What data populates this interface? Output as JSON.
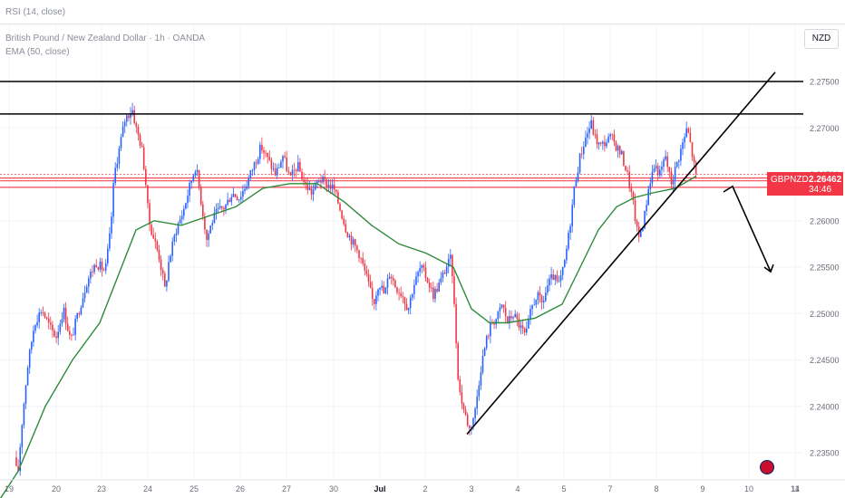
{
  "header": {
    "rsi_label": "RSI (14, close)",
    "title": "British Pound / New Zealand Dollar · 1h · OANDA",
    "ema_label": "EMA (50, close)",
    "currency_button": "NZD"
  },
  "price_badge": {
    "symbol": "GBPNZD",
    "price": "2.26462",
    "countdown": "34:46"
  },
  "colors": {
    "up_candle": "#2962ff",
    "down_candle": "#f23645",
    "ema_line": "#2e8b3a",
    "drawings": "#000000",
    "price_line": "#f23645"
  },
  "chart_data": {
    "type": "candlestick",
    "y_axis": {
      "ticks": [
        "2.27500",
        "2.27000",
        "2.26500",
        "2.26000",
        "2.25500",
        "2.25000",
        "2.24500",
        "2.24000",
        "2.23500"
      ],
      "tick_values": [
        2.275,
        2.27,
        2.265,
        2.26,
        2.255,
        2.25,
        2.245,
        2.24,
        2.235
      ],
      "ylim": [
        2.2325,
        2.279
      ]
    },
    "x_axis": {
      "ticks": [
        "19",
        "20",
        "23",
        "24",
        "25",
        "26",
        "27",
        "30",
        "Jul",
        "2",
        "3",
        "4",
        "5",
        "7",
        "8",
        "9",
        "10",
        "11",
        "14"
      ]
    },
    "price_path": [
      [
        0,
        2.2345
      ],
      [
        20,
        2.233
      ],
      [
        24,
        2.238
      ],
      [
        30,
        2.244
      ],
      [
        38,
        2.249
      ],
      [
        46,
        2.2505
      ],
      [
        55,
        2.2485
      ],
      [
        62,
        2.2475
      ],
      [
        70,
        2.2505
      ],
      [
        78,
        2.247
      ],
      [
        86,
        2.25
      ],
      [
        96,
        2.2535
      ],
      [
        106,
        2.2555
      ],
      [
        116,
        2.2545
      ],
      [
        122,
        2.259
      ],
      [
        126,
        2.265
      ],
      [
        132,
        2.268
      ],
      [
        138,
        2.271
      ],
      [
        146,
        2.272
      ],
      [
        150,
        2.27
      ],
      [
        156,
        2.268
      ],
      [
        160,
        2.265
      ],
      [
        164,
        2.26
      ],
      [
        170,
        2.258
      ],
      [
        176,
        2.256
      ],
      [
        182,
        2.2525
      ],
      [
        186,
        2.2555
      ],
      [
        194,
        2.259
      ],
      [
        202,
        2.261
      ],
      [
        210,
        2.264
      ],
      [
        216,
        2.266
      ],
      [
        222,
        2.262
      ],
      [
        228,
        2.258
      ],
      [
        234,
        2.26
      ],
      [
        240,
        2.261
      ],
      [
        248,
        2.2615
      ],
      [
        256,
        2.263
      ],
      [
        264,
        2.2625
      ],
      [
        272,
        2.264
      ],
      [
        280,
        2.266
      ],
      [
        288,
        2.268
      ],
      [
        296,
        2.2665
      ],
      [
        304,
        2.265
      ],
      [
        312,
        2.267
      ],
      [
        320,
        2.2645
      ],
      [
        328,
        2.266
      ],
      [
        336,
        2.264
      ],
      [
        344,
        2.263
      ],
      [
        352,
        2.2645
      ],
      [
        360,
        2.264
      ],
      [
        368,
        2.2635
      ],
      [
        376,
        2.261
      ],
      [
        382,
        2.259
      ],
      [
        390,
        2.2575
      ],
      [
        396,
        2.2565
      ],
      [
        404,
        2.254
      ],
      [
        412,
        2.251
      ],
      [
        418,
        2.2535
      ],
      [
        424,
        2.252
      ],
      [
        430,
        2.2545
      ],
      [
        436,
        2.253
      ],
      [
        444,
        2.252
      ],
      [
        450,
        2.2505
      ],
      [
        456,
        2.253
      ],
      [
        464,
        2.255
      ],
      [
        470,
        2.254
      ],
      [
        478,
        2.252
      ],
      [
        486,
        2.2535
      ],
      [
        492,
        2.255
      ],
      [
        498,
        2.256
      ],
      [
        502,
        2.249
      ],
      [
        506,
        2.242
      ],
      [
        512,
        2.2395
      ],
      [
        518,
        2.2375
      ],
      [
        524,
        2.2395
      ],
      [
        530,
        2.244
      ],
      [
        536,
        2.247
      ],
      [
        542,
        2.249
      ],
      [
        548,
        2.2495
      ],
      [
        554,
        2.251
      ],
      [
        560,
        2.249
      ],
      [
        566,
        2.25
      ],
      [
        574,
        2.2485
      ],
      [
        580,
        2.2475
      ],
      [
        586,
        2.2505
      ],
      [
        592,
        2.252
      ],
      [
        598,
        2.251
      ],
      [
        604,
        2.253
      ],
      [
        610,
        2.254
      ],
      [
        616,
        2.253
      ],
      [
        622,
        2.255
      ],
      [
        628,
        2.259
      ],
      [
        634,
        2.264
      ],
      [
        640,
        2.267
      ],
      [
        646,
        2.269
      ],
      [
        652,
        2.2705
      ],
      [
        656,
        2.269
      ],
      [
        662,
        2.268
      ],
      [
        668,
        2.2685
      ],
      [
        674,
        2.269
      ],
      [
        680,
        2.268
      ],
      [
        686,
        2.267
      ],
      [
        692,
        2.265
      ],
      [
        698,
        2.262
      ],
      [
        704,
        2.258
      ],
      [
        710,
        2.26
      ],
      [
        716,
        2.264
      ],
      [
        722,
        2.266
      ],
      [
        728,
        2.265
      ],
      [
        734,
        2.267
      ],
      [
        740,
        2.264
      ],
      [
        746,
        2.266
      ],
      [
        752,
        2.268
      ],
      [
        758,
        2.27
      ],
      [
        762,
        2.268
      ],
      [
        768,
        2.2646
      ]
    ],
    "series": [
      {
        "name": "EMA (50, close)",
        "points": [
          [
            0,
            2.23
          ],
          [
            20,
            2.233
          ],
          [
            50,
            2.24
          ],
          [
            80,
            2.245
          ],
          [
            110,
            2.249
          ],
          [
            130,
            2.254
          ],
          [
            150,
            2.259
          ],
          [
            170,
            2.26
          ],
          [
            200,
            2.2595
          ],
          [
            230,
            2.2605
          ],
          [
            260,
            2.2615
          ],
          [
            290,
            2.2635
          ],
          [
            320,
            2.264
          ],
          [
            350,
            2.264
          ],
          [
            380,
            2.262
          ],
          [
            410,
            2.2595
          ],
          [
            440,
            2.2575
          ],
          [
            470,
            2.2565
          ],
          [
            500,
            2.255
          ],
          [
            520,
            2.2505
          ],
          [
            540,
            2.249
          ],
          [
            560,
            2.249
          ],
          [
            590,
            2.2495
          ],
          [
            620,
            2.251
          ],
          [
            640,
            2.255
          ],
          [
            660,
            2.259
          ],
          [
            680,
            2.2615
          ],
          [
            700,
            2.2625
          ],
          [
            720,
            2.263
          ],
          [
            745,
            2.2635
          ],
          [
            768,
            2.2648
          ]
        ]
      }
    ],
    "current_price": 2.26462,
    "annotations": {
      "horizontal_lines": [
        2.275,
        2.2715
      ],
      "red_zone_lines": [
        2.265,
        2.2646,
        2.2643,
        2.2636
      ],
      "trendline_rising": [
        [
          515,
          2.237
        ],
        [
          855,
          2.276
        ]
      ],
      "projection_arrow": [
        [
          798,
          2.2631
        ],
        [
          808,
          2.2637
        ],
        [
          850,
          2.2545
        ]
      ]
    }
  }
}
